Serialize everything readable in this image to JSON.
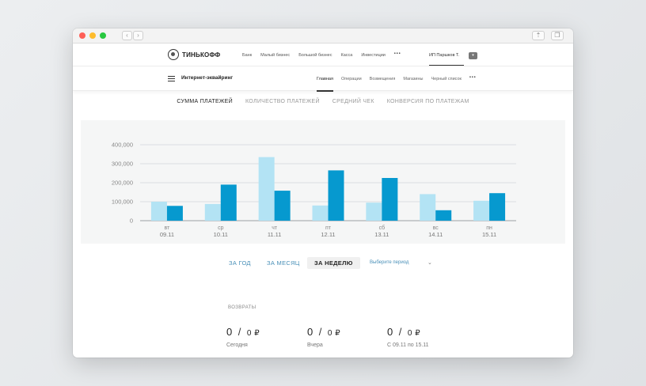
{
  "header": {
    "logo_text": "ТИНЬКОФФ",
    "nav": [
      "Банк",
      "Малый бизнес",
      "Большой бизнес",
      "Касса",
      "Инвестиции"
    ],
    "more": "•••",
    "account": "ИП Паршков Т."
  },
  "subheader": {
    "title": "Интернет-эквайринг",
    "nav": [
      "Главная",
      "Операции",
      "Возмещения",
      "Магазины",
      "Черный список"
    ],
    "active_index": 0,
    "more": "•••"
  },
  "metrics": {
    "tabs": [
      "СУММА ПЛАТЕЖЕЙ",
      "КОЛИЧЕСТВО ПЛАТЕЖЕЙ",
      "СРЕДНИЙ ЧЕК",
      "КОНВЕРСИЯ ПО ПЛАТЕЖАМ"
    ],
    "active_index": 0
  },
  "chart_data": {
    "type": "bar",
    "title": "",
    "xlabel": "",
    "ylabel": "",
    "ylim": [
      0,
      400000
    ],
    "yticks": [
      0,
      100000,
      200000,
      300000,
      400000
    ],
    "ytick_labels": [
      "0",
      "100,000",
      "200,000",
      "300,000",
      "400,000"
    ],
    "grid": true,
    "categories": [
      {
        "day": "вт",
        "date": "09.11"
      },
      {
        "day": "ср",
        "date": "10.11"
      },
      {
        "day": "чт",
        "date": "11.11"
      },
      {
        "day": "пт",
        "date": "12.11"
      },
      {
        "day": "сб",
        "date": "13.11"
      },
      {
        "day": "вс",
        "date": "14.11"
      },
      {
        "day": "пн",
        "date": "15.11"
      }
    ],
    "series": [
      {
        "color": "#b3e3f4",
        "values": [
          100000,
          88000,
          335000,
          80000,
          95000,
          140000,
          105000
        ]
      },
      {
        "color": "#0699cf",
        "values": [
          78000,
          190000,
          158000,
          265000,
          225000,
          55000,
          145000
        ]
      }
    ]
  },
  "periods": {
    "tabs": [
      "ЗА ГОД",
      "ЗА МЕСЯЦ",
      "ЗА НЕДЕЛЮ"
    ],
    "active_index": 2,
    "select_placeholder": "Выберите период",
    "select_icon": "chevron-down-icon"
  },
  "returns": {
    "label": "ВОЗВРАТЫ",
    "items": [
      {
        "count": "0",
        "amount": "0 ₽",
        "caption": "Сегодня"
      },
      {
        "count": "0",
        "amount": "0 ₽",
        "caption": "Вчера"
      },
      {
        "count": "0",
        "amount": "0 ₽",
        "caption": "С 09.11 по 15.11"
      }
    ]
  }
}
